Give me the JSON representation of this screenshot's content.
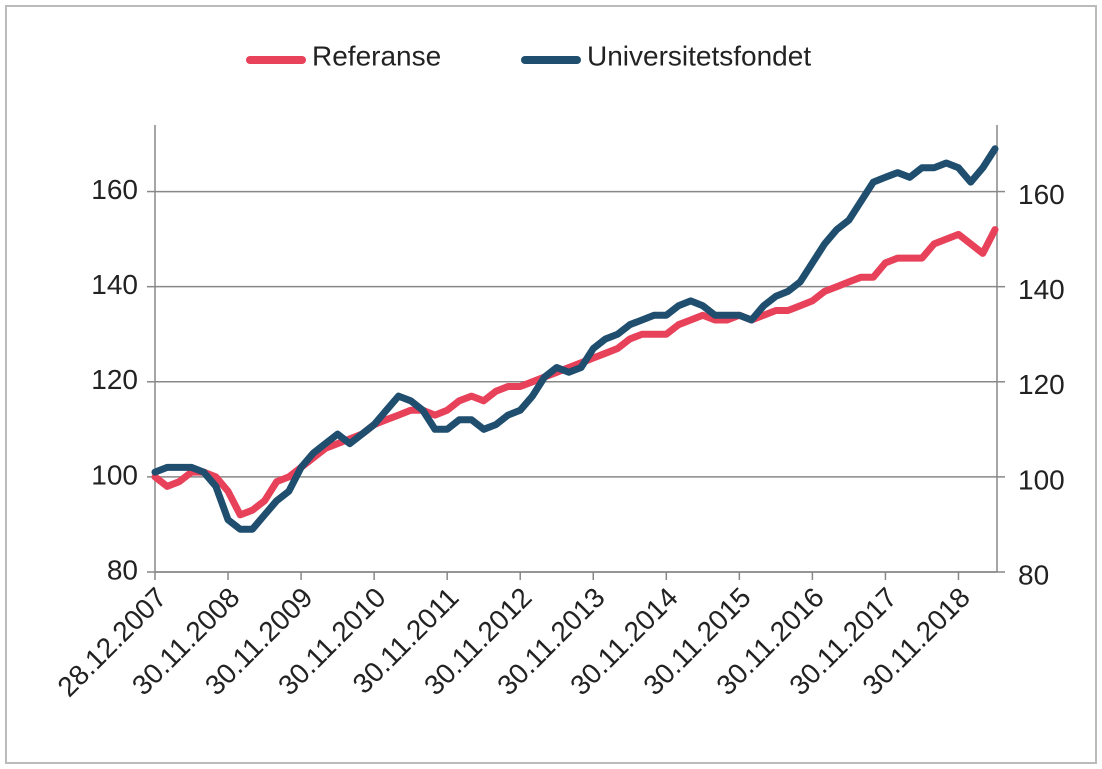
{
  "chart_data": {
    "type": "line",
    "categories": [
      "28.12.2007",
      null,
      null,
      null,
      null,
      null,
      "30.11.2008",
      null,
      null,
      null,
      null,
      null,
      "30.11.2009",
      null,
      null,
      null,
      null,
      null,
      "30.11.2010",
      null,
      null,
      null,
      null,
      null,
      "30.11.2011",
      null,
      null,
      null,
      null,
      null,
      "30.11.2012",
      null,
      null,
      null,
      null,
      null,
      "30.11.2013",
      null,
      null,
      null,
      null,
      null,
      "30.11.2014",
      null,
      null,
      null,
      null,
      null,
      "30.11.2015",
      null,
      null,
      null,
      null,
      null,
      "30.11.2016",
      null,
      null,
      null,
      null,
      null,
      "30.11.2017",
      null,
      null,
      null,
      null,
      null,
      "30.11.2018",
      null,
      null,
      null
    ],
    "series": [
      {
        "name": "Referanse",
        "color": "#e8415a",
        "values": [
          100,
          98,
          99,
          101,
          101,
          100,
          97,
          92,
          93,
          95,
          99,
          100,
          102,
          104,
          106,
          107,
          108,
          109,
          111,
          112,
          113,
          114,
          114,
          113,
          114,
          116,
          117,
          116,
          118,
          119,
          119,
          120,
          121,
          122,
          123,
          124,
          125,
          126,
          127,
          129,
          130,
          130,
          130,
          132,
          133,
          134,
          133,
          133,
          134,
          133,
          134,
          135,
          135,
          136,
          137,
          139,
          140,
          141,
          142,
          142,
          145,
          146,
          146,
          146,
          149,
          150,
          151,
          149,
          147,
          152
        ]
      },
      {
        "name": "Universitetsfondet",
        "color": "#1f4e6e",
        "values": [
          101,
          102,
          102,
          102,
          101,
          98,
          91,
          89,
          89,
          92,
          95,
          97,
          102,
          105,
          107,
          109,
          107,
          109,
          111,
          114,
          117,
          116,
          114,
          110,
          110,
          112,
          112,
          110,
          111,
          113,
          114,
          117,
          121,
          123,
          122,
          123,
          127,
          129,
          130,
          132,
          133,
          134,
          134,
          136,
          137,
          136,
          134,
          134,
          134,
          133,
          136,
          138,
          139,
          141,
          145,
          149,
          152,
          154,
          158,
          162,
          163,
          164,
          163,
          165,
          165,
          166,
          165,
          162,
          165,
          169
        ]
      }
    ],
    "ylim": [
      80,
      174
    ],
    "yticks": [
      80,
      100,
      120,
      140,
      160
    ],
    "y2lim": [
      80,
      174
    ],
    "y2ticks": [
      80,
      100,
      120,
      140,
      160
    ],
    "grid": true,
    "legend": "top"
  }
}
